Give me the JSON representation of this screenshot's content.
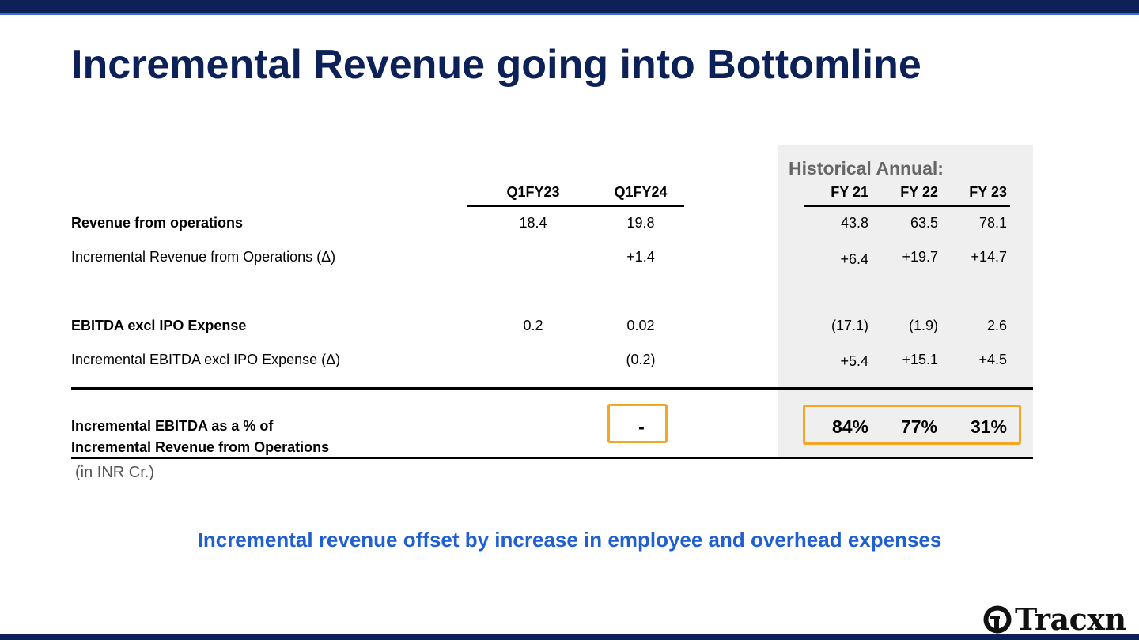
{
  "title": "Incremental Revenue going into Bottomline",
  "historical_heading": "Historical Annual:",
  "columns": {
    "q1fy23": "Q1FY23",
    "q1fy24": "Q1FY24",
    "fy21": "FY 21",
    "fy22": "FY 22",
    "fy23": "FY 23"
  },
  "rows": [
    {
      "label": "Revenue from operations",
      "q1fy23": "18.4",
      "q1fy24": "19.8",
      "fy21": "43.8",
      "fy22": "63.5",
      "fy23": "78.1"
    },
    {
      "label": "Incremental Revenue from Operations (Δ)",
      "q1fy23": "",
      "q1fy24": "+1.4",
      "fy21": "+6.4",
      "fy22": "+19.7",
      "fy23": "+14.7"
    },
    {
      "label": "EBITDA excl IPO Expense",
      "q1fy23": "0.2",
      "q1fy24": "0.02",
      "fy21": "(17.1)",
      "fy22": "(1.9)",
      "fy23": "2.6"
    },
    {
      "label": "Incremental EBITDA excl IPO Expense (Δ)",
      "q1fy23": "",
      "q1fy24": "(0.2)",
      "fy21": "+5.4",
      "fy22": "+15.1",
      "fy23": "+4.5"
    }
  ],
  "pct_row": {
    "label_line1": "Incremental EBITDA as a % of",
    "label_line2": "Incremental Revenue from Operations",
    "q1fy24": "-",
    "fy21": "84%",
    "fy22": "77%",
    "fy23": "31%"
  },
  "unit_note": "(in INR Cr.)",
  "footnote": "Incremental revenue offset by increase in employee and overhead expenses",
  "logo": {
    "text": "Tracxn",
    "icon": "tracxn-logo-icon"
  },
  "colors": {
    "navy": "#0d2159",
    "highlight_border": "#f5a623",
    "footnote_blue": "#1f5fcf",
    "historical_bg": "#efefef"
  }
}
